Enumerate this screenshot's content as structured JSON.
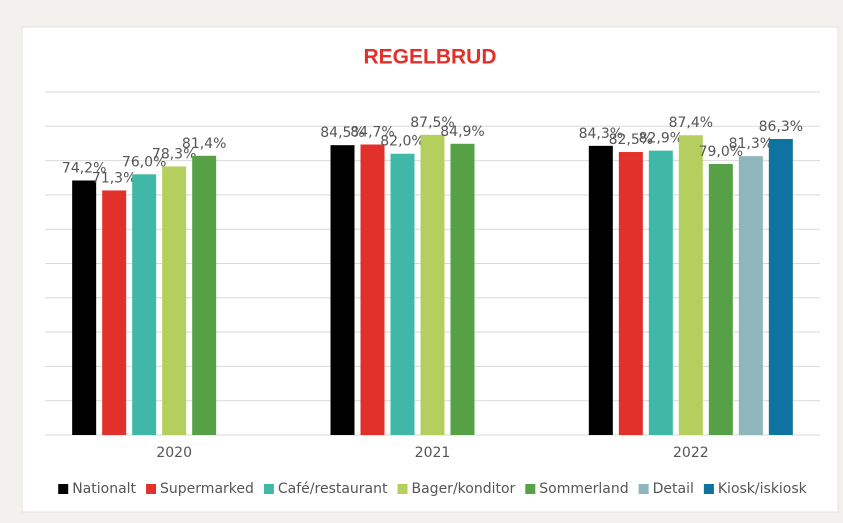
{
  "chart_data": {
    "type": "bar",
    "title": "REGELBRUD",
    "categories": [
      "2020",
      "2021",
      "2022"
    ],
    "series": [
      {
        "name": "Nationalt",
        "color": "#000000",
        "values": [
          74.2,
          84.5,
          84.3
        ],
        "value_labels": [
          "74,2%",
          "84,5%",
          "84,3%"
        ]
      },
      {
        "name": "Supermarked",
        "color": "#e2312a",
        "values": [
          71.3,
          84.7,
          82.5
        ],
        "value_labels": [
          "71,3%",
          "84,7%",
          "82,5%"
        ]
      },
      {
        "name": "Café/restaurant",
        "color": "#3fb8a8",
        "values": [
          76.0,
          82.0,
          82.9
        ],
        "value_labels": [
          "76,0%",
          "82,0%",
          "82,9%"
        ]
      },
      {
        "name": "Bager/konditor",
        "color": "#b5cf5e",
        "values": [
          78.3,
          87.5,
          87.4
        ],
        "value_labels": [
          "78,3%",
          "87,5%",
          "87,4%"
        ]
      },
      {
        "name": "Sommerland",
        "color": "#56a046",
        "values": [
          81.4,
          84.9,
          79.0
        ],
        "value_labels": [
          "81,4%",
          "84,9%",
          "79,0%"
        ]
      },
      {
        "name": "Detail",
        "color": "#8fb5bd",
        "values": [
          null,
          null,
          81.3
        ],
        "value_labels": [
          null,
          null,
          "81,3%"
        ]
      },
      {
        "name": "Kiosk/iskiosk",
        "color": "#0f73a0",
        "values": [
          null,
          null,
          86.3
        ],
        "value_labels": [
          null,
          null,
          "86,3%"
        ]
      }
    ],
    "ylim": [
      0,
      100
    ],
    "yticks": [
      0,
      10,
      20,
      30,
      40,
      50,
      60,
      70,
      80,
      90,
      100
    ],
    "grid": true,
    "legend": "bottom"
  }
}
